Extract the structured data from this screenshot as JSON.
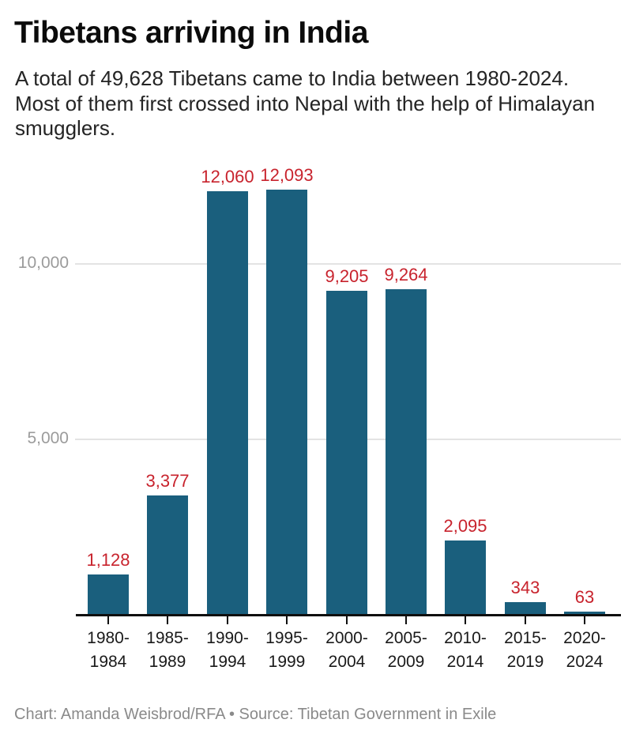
{
  "header": {
    "title": "Tibetans arriving in India",
    "subtitle": "A total of 49,628 Tibetans came to India between 1980-2024. Most of them first crossed into Nepal with the help of Himalayan smugglers."
  },
  "footer": {
    "credit": "Chart: Amanda Weisbrod/RFA • Source: Tibetan Government in Exile"
  },
  "chart_data": {
    "type": "bar",
    "title": "Tibetans arriving in India",
    "categories": [
      "1980-\n1984",
      "1985-\n1989",
      "1990-\n1994",
      "1995-\n1999",
      "2000-\n2004",
      "2005-\n2009",
      "2010-\n2014",
      "2015-\n2019",
      "2020-\n2024"
    ],
    "values": [
      1128,
      3377,
      12060,
      12093,
      9205,
      9264,
      2095,
      343,
      63
    ],
    "value_labels": [
      "1,128",
      "3,377",
      "12,060",
      "12,093",
      "9,205",
      "9,264",
      "2,095",
      "343",
      "63"
    ],
    "total": 49628,
    "xlabel": "",
    "ylabel": "",
    "ylim": [
      0,
      13100
    ],
    "y_ticks": [
      {
        "value": 5000,
        "label": "5,000"
      },
      {
        "value": 10000,
        "label": "10,000"
      }
    ],
    "grid": "horizontal",
    "legend": "none",
    "colors": {
      "bar": "#1a5f7d",
      "value_label": "#c8232d",
      "gridline": "#e3e3e3",
      "axis": "#0f0f0f",
      "y_tick_label": "#9b9b9b",
      "x_tick_label": "#1a1a1a"
    }
  }
}
